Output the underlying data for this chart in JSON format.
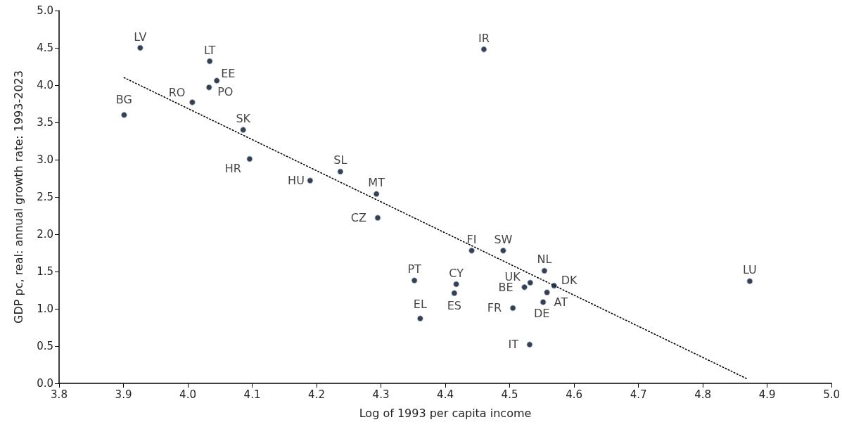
{
  "chart_data": {
    "type": "scatter",
    "xlabel": "Log of 1993 per capita income",
    "ylabel": "GDP pc, real: annual growth rate: 1993-2023",
    "xlim": [
      3.8,
      5.0
    ],
    "xticks": [
      {
        "value": 3.8,
        "label": "3.8"
      },
      {
        "value": 3.9,
        "label": "3.9"
      },
      {
        "value": 4.0,
        "label": "4.0"
      },
      {
        "value": 4.1,
        "label": "4.1"
      },
      {
        "value": 4.2,
        "label": "4.2"
      },
      {
        "value": 4.3,
        "label": "4.3"
      },
      {
        "value": 4.4,
        "label": "4.4"
      },
      {
        "value": 4.5,
        "label": "4.5"
      },
      {
        "value": 4.6,
        "label": "4.6"
      },
      {
        "value": 4.7,
        "label": "4.7"
      },
      {
        "value": 4.8,
        "label": "4.8"
      },
      {
        "value": 4.9,
        "label": "4.9"
      },
      {
        "value": 5.0,
        "label": "5.0"
      }
    ],
    "ylim": [
      0.0,
      5.0
    ],
    "yticks": [
      {
        "value": 0,
        "label": "0.0"
      },
      {
        "value": 0.5,
        "label": "0.5"
      },
      {
        "value": 1,
        "label": "1.0"
      },
      {
        "value": 1.5,
        "label": "1.5"
      },
      {
        "value": 2,
        "label": "2.0"
      },
      {
        "value": 2.5,
        "label": "2.5"
      },
      {
        "value": 3,
        "label": "3.0"
      },
      {
        "value": 3.5,
        "label": "3.5"
      },
      {
        "value": 4,
        "label": "4.0"
      },
      {
        "value": 4.5,
        "label": "4.5"
      },
      {
        "value": 5,
        "label": "5.0"
      }
    ],
    "grid": false,
    "series": [
      {
        "color": "#0a0f1e",
        "marker": "circle",
        "x": [
          3.926,
          4.034,
          4.045,
          4.033,
          4.007,
          3.901,
          4.086,
          4.096,
          4.19,
          4.237,
          4.293,
          4.295,
          4.352,
          4.361,
          4.46,
          4.441,
          4.49,
          4.554,
          4.532,
          4.523,
          4.569,
          4.558,
          4.552,
          4.505,
          4.531,
          4.417,
          4.414,
          4.873
        ],
        "values": [
          4.5,
          4.32,
          4.06,
          3.97,
          3.77,
          3.6,
          3.4,
          3.01,
          2.72,
          2.84,
          2.54,
          2.22,
          1.38,
          0.87,
          4.48,
          1.78,
          1.78,
          1.51,
          1.35,
          1.29,
          1.31,
          1.22,
          1.09,
          1.01,
          0.52,
          1.33,
          1.21,
          1.37
        ]
      },
      {
        "type": "line",
        "color": "#000000",
        "marker": "none",
        "line_style": "dotted",
        "x": [
          3.901,
          4.869
        ],
        "values": [
          4.1,
          0.06
        ]
      }
    ],
    "annotations": [
      {
        "text": "LV",
        "x": 3.926,
        "y": 4.5
      },
      {
        "text": "LT",
        "x": 4.034,
        "y": 4.32
      },
      {
        "text": "EE",
        "x": 4.045,
        "y": 4.06
      },
      {
        "text": "PO",
        "x": 4.033,
        "y": 3.97
      },
      {
        "text": "RO",
        "x": 4.007,
        "y": 3.77
      },
      {
        "text": "BG",
        "x": 3.901,
        "y": 3.6
      },
      {
        "text": "SK",
        "x": 4.086,
        "y": 3.4
      },
      {
        "text": "HR",
        "x": 4.096,
        "y": 3.01
      },
      {
        "text": "HU",
        "x": 4.19,
        "y": 2.72
      },
      {
        "text": "SL",
        "x": 4.237,
        "y": 2.84
      },
      {
        "text": "MT",
        "x": 4.293,
        "y": 2.54
      },
      {
        "text": "CZ",
        "x": 4.295,
        "y": 2.22
      },
      {
        "text": "PT",
        "x": 4.352,
        "y": 1.38
      },
      {
        "text": "EL",
        "x": 4.361,
        "y": 0.87
      },
      {
        "text": "IR",
        "x": 4.46,
        "y": 4.48
      },
      {
        "text": "FI",
        "x": 4.441,
        "y": 1.78
      },
      {
        "text": "SW",
        "x": 4.49,
        "y": 1.78
      },
      {
        "text": "NL",
        "x": 4.554,
        "y": 1.51
      },
      {
        "text": "UK",
        "x": 4.532,
        "y": 1.35
      },
      {
        "text": "BE",
        "x": 4.523,
        "y": 1.29
      },
      {
        "text": "DK",
        "x": 4.569,
        "y": 1.31
      },
      {
        "text": "AT",
        "x": 4.558,
        "y": 1.22
      },
      {
        "text": "DE",
        "x": 4.552,
        "y": 1.09
      },
      {
        "text": "FR",
        "x": 4.505,
        "y": 1.01
      },
      {
        "text": "IT",
        "x": 4.531,
        "y": 0.52
      },
      {
        "text": "CY",
        "x": 4.417,
        "y": 1.33
      },
      {
        "text": "ES",
        "x": 4.414,
        "y": 1.21
      },
      {
        "text": "LU",
        "x": 4.873,
        "y": 1.37
      }
    ]
  }
}
